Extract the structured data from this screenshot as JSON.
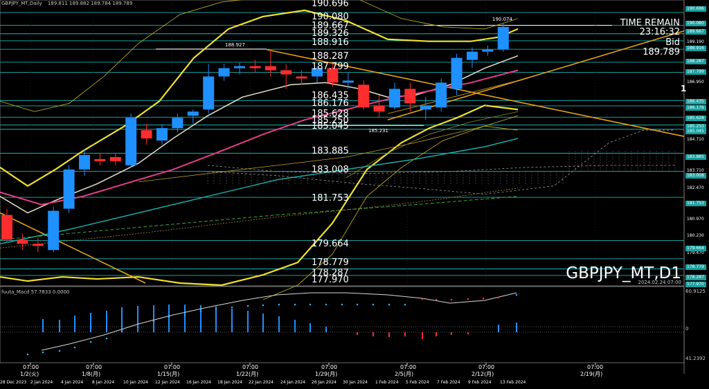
{
  "header": {
    "symbol_info": "GBPJPY_MT,Daily",
    "ohlc": "189.811 189.882 189.784 189.789"
  },
  "symbol_label": "GBPJPY_MT,D1",
  "timestamp": "2024.02.24 07:00",
  "time_remain_label": "TIME REMAIN",
  "time_remain_value": "23:16:32",
  "bid_label": "Bid",
  "bid_value": "189.789",
  "level_labels": [
    "190.696",
    "190.080",
    "189.667",
    "189.326",
    "188.916",
    "188.287",
    "187.799",
    "186.435",
    "186.176",
    "185.628",
    "185.250",
    "185.045",
    "183.885",
    "183.008",
    "181.753",
    "179.664",
    "178.779",
    "178.287",
    "177.970"
  ],
  "small_labels": {
    "high1": "188.927",
    "high2": "190.074",
    "low1": "185.231"
  },
  "right_axis_labels": [
    "190.696",
    "190.080",
    "189.667",
    "189.190",
    "188.916",
    "188.287",
    "187.799",
    "186.950",
    "186.435",
    "186.176",
    "185.628",
    "185.250",
    "185.045",
    "184.710",
    "183.885",
    "183.710",
    "183.008",
    "182.470",
    "181.753",
    "180.970",
    "180.230",
    "179.470",
    "179.664",
    "178.779",
    "178.287",
    "177.970"
  ],
  "macd": {
    "title": "fuuta_Macd 57.7833  0.0000",
    "scale_top": "60.9125",
    "scale_bottom": "41.2392",
    "scale_mid": "0"
  },
  "right_marker": "1",
  "x_axis": {
    "time_labels": [
      "07:00",
      "07:00",
      "07:00",
      "07:00",
      "07:00",
      "07:00",
      "07:00",
      "07:00"
    ],
    "date_labels": [
      "1/2(火)",
      "1/8(月)",
      "1/15(月)",
      "1/22(月)",
      "1/29(月)",
      "2/5(月)",
      "2/12(月)",
      "2/19(月)"
    ],
    "bottom_dates": [
      "28 Dec 2023",
      "2 Jan 2024",
      "4 Jan 2024",
      "8 Jan 2024",
      "10 Jan 2024",
      "12 Jan 2024",
      "16 Jan 2024",
      "18 Jan 2024",
      "22 Jan 2024",
      "24 Jan 2024",
      "26 Jan 2024",
      "30 Jan 2024",
      "1 Feb 2024",
      "5 Feb 2024",
      "7 Feb 2024",
      "9 Feb 2024",
      "13 Feb 2024"
    ]
  },
  "chart_data": {
    "type": "candlestick",
    "candles": [
      {
        "date": "28 Dec 2023",
        "open": 180.9,
        "high": 181.2,
        "low": 179.6,
        "close": 179.7
      },
      {
        "date": "29 Dec 2023",
        "open": 179.7,
        "high": 180.0,
        "low": 179.2,
        "close": 179.5
      },
      {
        "date": "2 Jan 2024",
        "open": 179.5,
        "high": 179.8,
        "low": 179.1,
        "close": 179.4
      },
      {
        "date": "3 Jan 2024",
        "open": 179.2,
        "high": 181.3,
        "low": 179.1,
        "close": 181.1
      },
      {
        "date": "4 Jan 2024",
        "open": 181.2,
        "high": 183.3,
        "low": 181.0,
        "close": 183.1
      },
      {
        "date": "5 Jan 2024",
        "open": 183.1,
        "high": 184.1,
        "low": 182.8,
        "close": 183.8
      },
      {
        "date": "8 Jan 2024",
        "open": 183.6,
        "high": 183.9,
        "low": 183.3,
        "close": 183.5
      },
      {
        "date": "9 Jan 2024",
        "open": 183.7,
        "high": 183.9,
        "low": 183.3,
        "close": 183.5
      },
      {
        "date": "10 Jan 2024",
        "open": 183.3,
        "high": 185.8,
        "low": 183.2,
        "close": 185.6
      },
      {
        "date": "11 Jan 2024",
        "open": 185.0,
        "high": 185.3,
        "low": 184.3,
        "close": 184.6
      },
      {
        "date": "12 Jan 2024",
        "open": 184.5,
        "high": 185.3,
        "low": 184.3,
        "close": 185.1
      },
      {
        "date": "15 Jan 2024",
        "open": 185.1,
        "high": 185.8,
        "low": 184.9,
        "close": 185.6
      },
      {
        "date": "16 Jan 2024",
        "open": 185.7,
        "high": 186.0,
        "low": 185.3,
        "close": 185.9
      },
      {
        "date": "17 Jan 2024",
        "open": 186.0,
        "high": 188.2,
        "low": 185.8,
        "close": 187.6
      },
      {
        "date": "18 Jan 2024",
        "open": 187.6,
        "high": 188.2,
        "low": 187.4,
        "close": 188.0
      },
      {
        "date": "19 Jan 2024",
        "open": 188.0,
        "high": 188.3,
        "low": 187.7,
        "close": 188.1
      },
      {
        "date": "22 Jan 2024",
        "open": 188.1,
        "high": 188.4,
        "low": 187.8,
        "close": 188.0
      },
      {
        "date": "23 Jan 2024",
        "open": 188.1,
        "high": 188.9,
        "low": 187.6,
        "close": 187.9
      },
      {
        "date": "24 Jan 2024",
        "open": 187.9,
        "high": 188.2,
        "low": 187.0,
        "close": 187.7
      },
      {
        "date": "25 Jan 2024",
        "open": 187.6,
        "high": 187.9,
        "low": 187.2,
        "close": 187.5
      },
      {
        "date": "26 Jan 2024",
        "open": 187.6,
        "high": 188.1,
        "low": 187.3,
        "close": 188.0
      },
      {
        "date": "29 Jan 2024",
        "open": 188.0,
        "high": 188.3,
        "low": 187.1,
        "close": 187.3
      },
      {
        "date": "30 Jan 2024",
        "open": 187.3,
        "high": 187.8,
        "low": 187.0,
        "close": 187.4
      },
      {
        "date": "31 Jan 2024",
        "open": 187.2,
        "high": 187.4,
        "low": 186.0,
        "close": 186.1
      },
      {
        "date": "1 Feb 2024",
        "open": 186.2,
        "high": 186.7,
        "low": 185.6,
        "close": 185.9
      },
      {
        "date": "2 Feb 2024",
        "open": 186.1,
        "high": 187.3,
        "low": 186.0,
        "close": 187.0
      },
      {
        "date": "5 Feb 2024",
        "open": 187.0,
        "high": 187.3,
        "low": 185.9,
        "close": 186.3
      },
      {
        "date": "6 Feb 2024",
        "open": 186.0,
        "high": 186.6,
        "low": 185.5,
        "close": 186.2
      },
      {
        "date": "7 Feb 2024",
        "open": 186.1,
        "high": 187.5,
        "low": 185.9,
        "close": 187.3
      },
      {
        "date": "8 Feb 2024",
        "open": 187.0,
        "high": 188.7,
        "low": 186.7,
        "close": 188.5
      },
      {
        "date": "9 Feb 2024",
        "open": 188.4,
        "high": 189.0,
        "low": 188.0,
        "close": 188.8
      },
      {
        "date": "12 Feb 2024",
        "open": 188.8,
        "high": 189.1,
        "low": 188.6,
        "close": 188.9
      },
      {
        "date": "13 Feb 2024",
        "open": 188.9,
        "high": 190.2,
        "low": 188.8,
        "close": 190.0
      }
    ],
    "ylim": [
      177.5,
      191.3
    ]
  }
}
